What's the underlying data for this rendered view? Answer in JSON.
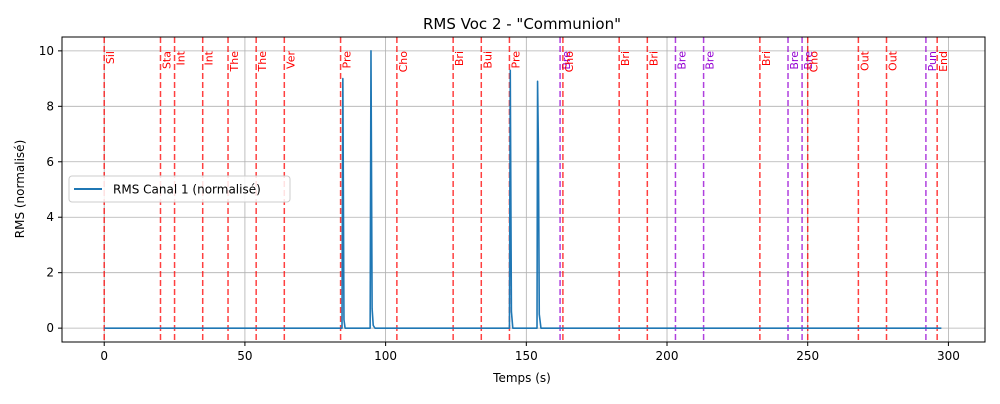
{
  "chart_data": {
    "type": "line",
    "title": "RMS Voc 2 - \"Communion\"",
    "xlabel": "Temps (s)",
    "ylabel": "RMS (normalisé)",
    "xlim": [
      -15,
      313
    ],
    "ylim": [
      -0.5,
      10.5
    ],
    "xticks": [
      0,
      50,
      100,
      150,
      200,
      250,
      300
    ],
    "yticks": [
      0,
      2,
      4,
      6,
      8,
      10
    ],
    "grid": true,
    "legend_position": "center-left",
    "colors": {
      "series": "#1f77b4",
      "marker_red": "#ff0000",
      "marker_purple": "#9400d3"
    },
    "series": [
      {
        "name": "RMS Canal 1 (normalisé)",
        "x": [
          0,
          84.5,
          84.8,
          85.2,
          85.6,
          94.5,
          94.8,
          95.2,
          95.6,
          96.2,
          144.0,
          144.3,
          144.7,
          145.2,
          153.8,
          154.0,
          154.3,
          154.6,
          155.2,
          297.5
        ],
        "y": [
          0,
          0,
          9.0,
          0.3,
          0,
          0,
          10.0,
          0.7,
          0.1,
          0,
          0,
          9.3,
          0.6,
          0,
          0,
          8.9,
          6.5,
          0.5,
          0,
          0
        ]
      }
    ],
    "markers": [
      {
        "x": 0,
        "label": "Sil",
        "color": "red"
      },
      {
        "x": 20,
        "label": "Sta",
        "color": "red"
      },
      {
        "x": 25,
        "label": "Int",
        "color": "red"
      },
      {
        "x": 35,
        "label": "Int",
        "color": "red"
      },
      {
        "x": 44,
        "label": "The",
        "color": "red"
      },
      {
        "x": 54,
        "label": "The",
        "color": "red"
      },
      {
        "x": 64,
        "label": "Ver",
        "color": "red"
      },
      {
        "x": 84,
        "label": "Pre",
        "color": "red"
      },
      {
        "x": 104,
        "label": "Cho",
        "color": "red"
      },
      {
        "x": 124,
        "label": "Bri",
        "color": "red"
      },
      {
        "x": 134,
        "label": "Bui",
        "color": "red"
      },
      {
        "x": 144,
        "label": "Pre",
        "color": "red"
      },
      {
        "x": 162,
        "label": "Bre",
        "color": "purple"
      },
      {
        "x": 163,
        "label": "Cho",
        "color": "red"
      },
      {
        "x": 183,
        "label": "Bri",
        "color": "red"
      },
      {
        "x": 193,
        "label": "Bri",
        "color": "red"
      },
      {
        "x": 203,
        "label": "Bre",
        "color": "purple"
      },
      {
        "x": 213,
        "label": "Bre",
        "color": "purple"
      },
      {
        "x": 233,
        "label": "Bri",
        "color": "red"
      },
      {
        "x": 243,
        "label": "Bre",
        "color": "purple"
      },
      {
        "x": 248,
        "label": "Bre",
        "color": "purple"
      },
      {
        "x": 250,
        "label": "Cho",
        "color": "red"
      },
      {
        "x": 268,
        "label": "Out",
        "color": "red"
      },
      {
        "x": 278,
        "label": "Out",
        "color": "red"
      },
      {
        "x": 292,
        "label": "Pun",
        "color": "purple"
      },
      {
        "x": 296,
        "label": "End",
        "color": "red"
      }
    ]
  }
}
